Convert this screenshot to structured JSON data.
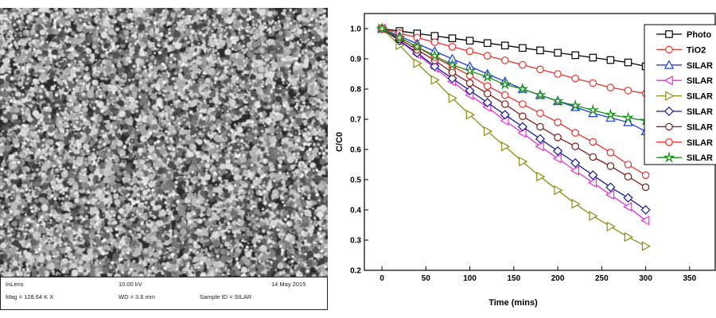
{
  "micrograph": {
    "info_left": [
      "InLens",
      "Mag = 128.64 K X"
    ],
    "info_mid": [
      "10.00 kV",
      "WD = 3.6 mm"
    ],
    "info_right": [
      "14 May 2015",
      "Sample ID = SILAR"
    ]
  },
  "chart_data": {
    "type": "line",
    "xlabel": "Time (mins)",
    "ylabel": "C/C0",
    "xlim": [
      -20,
      380
    ],
    "ylim": [
      0.2,
      1.05
    ],
    "xticks": [
      0,
      50,
      100,
      150,
      200,
      250,
      300,
      350
    ],
    "yticks": [
      0.2,
      0.3,
      0.4,
      0.5,
      0.6,
      0.7,
      0.8,
      0.9,
      1.0
    ],
    "grid": false,
    "legend_position": "top-right",
    "x": [
      0,
      20,
      40,
      60,
      80,
      100,
      120,
      140,
      160,
      180,
      200,
      220,
      240,
      260,
      280,
      300
    ],
    "series": [
      {
        "name": "Photo",
        "color": "#000000",
        "marker": "square",
        "values": [
          1.0,
          0.992,
          0.984,
          0.976,
          0.968,
          0.96,
          0.952,
          0.944,
          0.936,
          0.928,
          0.92,
          0.912,
          0.904,
          0.896,
          0.888,
          0.875
        ]
      },
      {
        "name": "TiO2",
        "color": "#e3342f",
        "marker": "circle",
        "values": [
          1.0,
          0.985,
          0.97,
          0.955,
          0.94,
          0.925,
          0.91,
          0.895,
          0.88,
          0.865,
          0.85,
          0.835,
          0.82,
          0.805,
          0.795,
          0.785
        ]
      },
      {
        "name": "SILAR",
        "color": "#1f3fd6",
        "marker": "triangle-up",
        "values": [
          1.0,
          0.975,
          0.95,
          0.925,
          0.9,
          0.875,
          0.85,
          0.825,
          0.8,
          0.78,
          0.76,
          0.74,
          0.72,
          0.705,
          0.69,
          0.66
        ]
      },
      {
        "name": "SILAR",
        "color": "#e82fd6",
        "marker": "triangle-left",
        "values": [
          1.0,
          0.96,
          0.915,
          0.87,
          0.825,
          0.78,
          0.74,
          0.695,
          0.655,
          0.61,
          0.57,
          0.53,
          0.49,
          0.45,
          0.41,
          0.365
        ]
      },
      {
        "name": "SILAR",
        "color": "#8c8c14",
        "marker": "triangle-right",
        "values": [
          1.0,
          0.945,
          0.885,
          0.83,
          0.77,
          0.715,
          0.66,
          0.61,
          0.56,
          0.51,
          0.465,
          0.42,
          0.38,
          0.345,
          0.31,
          0.28
        ]
      },
      {
        "name": "SILAR",
        "color": "#1a1a8c",
        "marker": "diamond",
        "values": [
          1.0,
          0.96,
          0.92,
          0.875,
          0.835,
          0.795,
          0.755,
          0.715,
          0.675,
          0.635,
          0.595,
          0.555,
          0.515,
          0.475,
          0.44,
          0.4
        ]
      },
      {
        "name": "SILAR",
        "color": "#7a1a1a",
        "marker": "circle",
        "values": [
          1.0,
          0.965,
          0.93,
          0.895,
          0.855,
          0.82,
          0.785,
          0.75,
          0.71,
          0.675,
          0.64,
          0.61,
          0.575,
          0.545,
          0.51,
          0.475
        ]
      },
      {
        "name": "SILAR",
        "color": "#e3342f",
        "marker": "circle",
        "values": [
          1.0,
          0.97,
          0.94,
          0.905,
          0.875,
          0.845,
          0.81,
          0.78,
          0.75,
          0.72,
          0.69,
          0.655,
          0.625,
          0.59,
          0.55,
          0.515
        ]
      },
      {
        "name": "SILAR",
        "color": "#1a8c1a",
        "marker": "star",
        "values": [
          1.0,
          0.97,
          0.94,
          0.91,
          0.88,
          0.86,
          0.84,
          0.815,
          0.8,
          0.78,
          0.76,
          0.745,
          0.73,
          0.715,
          0.705,
          0.695
        ]
      }
    ]
  }
}
